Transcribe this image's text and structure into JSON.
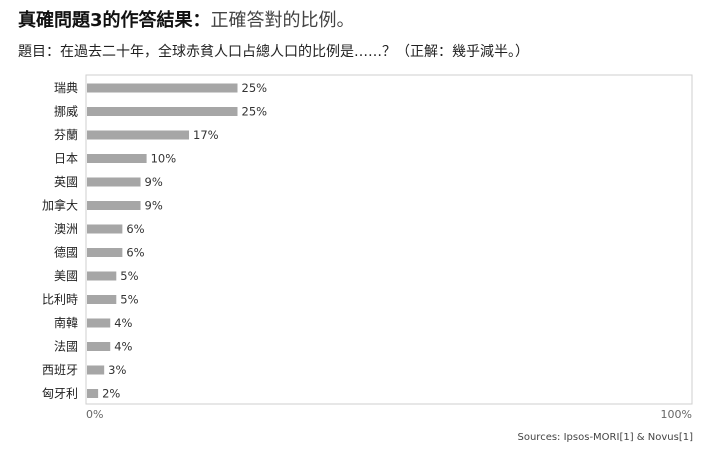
{
  "header": {
    "title_bold": "真確問題3的作答結果：",
    "title_light": "正確答對的比例。",
    "subtitle": "題目：在過去二十年，全球赤貧人口占總人口的比例是……？（正解：幾乎減半。）"
  },
  "source": "Sources: Ipsos-MORI[1] & Novus[1]",
  "chart_data": {
    "type": "bar",
    "orientation": "horizontal",
    "title": "",
    "xlabel": "",
    "ylabel": "",
    "categories": [
      "瑞典",
      "挪威",
      "芬蘭",
      "日本",
      "英國",
      "加拿大",
      "澳洲",
      "德國",
      "美國",
      "比利時",
      "南韓",
      "法國",
      "西班牙",
      "匈牙利"
    ],
    "values": [
      25,
      25,
      17,
      10,
      9,
      9,
      6,
      6,
      5,
      5,
      4,
      4,
      3,
      2
    ],
    "value_labels": [
      "25%",
      "25%",
      "17%",
      "10%",
      "9%",
      "9%",
      "6%",
      "6%",
      "5%",
      "5%",
      "4%",
      "4%",
      "3%",
      "2%"
    ],
    "xlim": [
      0,
      100
    ],
    "x_tick_labels": [
      "0%",
      "100%"
    ],
    "grid": false,
    "bar_color": "#a6a6a6"
  }
}
